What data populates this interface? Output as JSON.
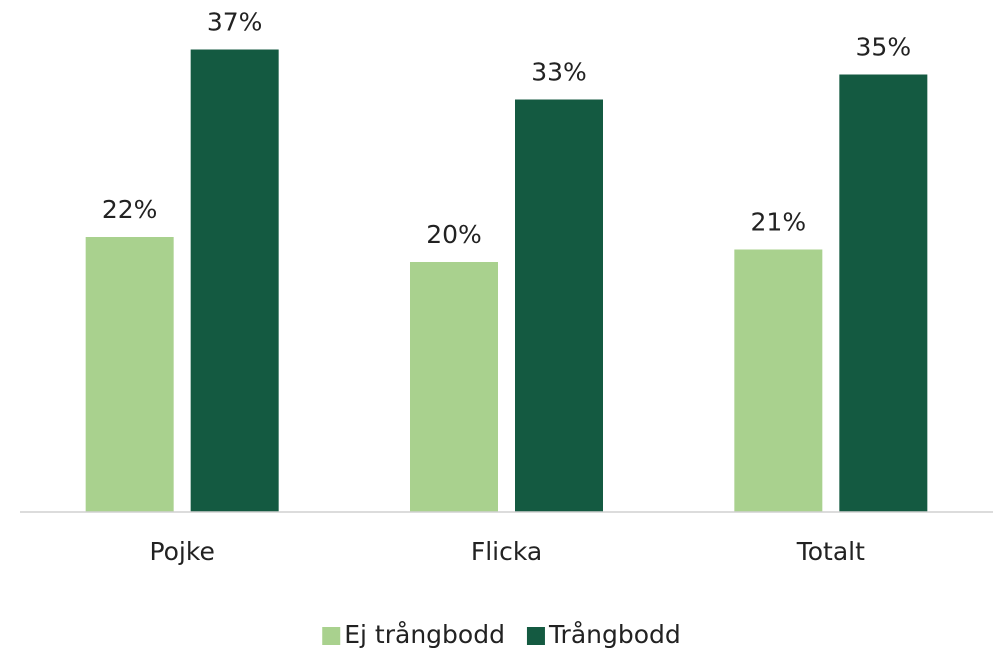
{
  "chart_data": {
    "type": "bar",
    "categories": [
      "Pojke",
      "Flicka",
      "Totalt"
    ],
    "series": [
      {
        "name": "Ej trångbodd",
        "color": "#a9d18e",
        "values": [
          22,
          20,
          21
        ],
        "value_labels": [
          "22%",
          "20%",
          "21%"
        ]
      },
      {
        "name": "Trångbodd",
        "color": "#145a41",
        "values": [
          37,
          33,
          35
        ],
        "value_labels": [
          "37%",
          "33%",
          "35%"
        ]
      }
    ],
    "ylim": [
      0,
      40
    ],
    "grid": false,
    "legend": "bottom"
  }
}
